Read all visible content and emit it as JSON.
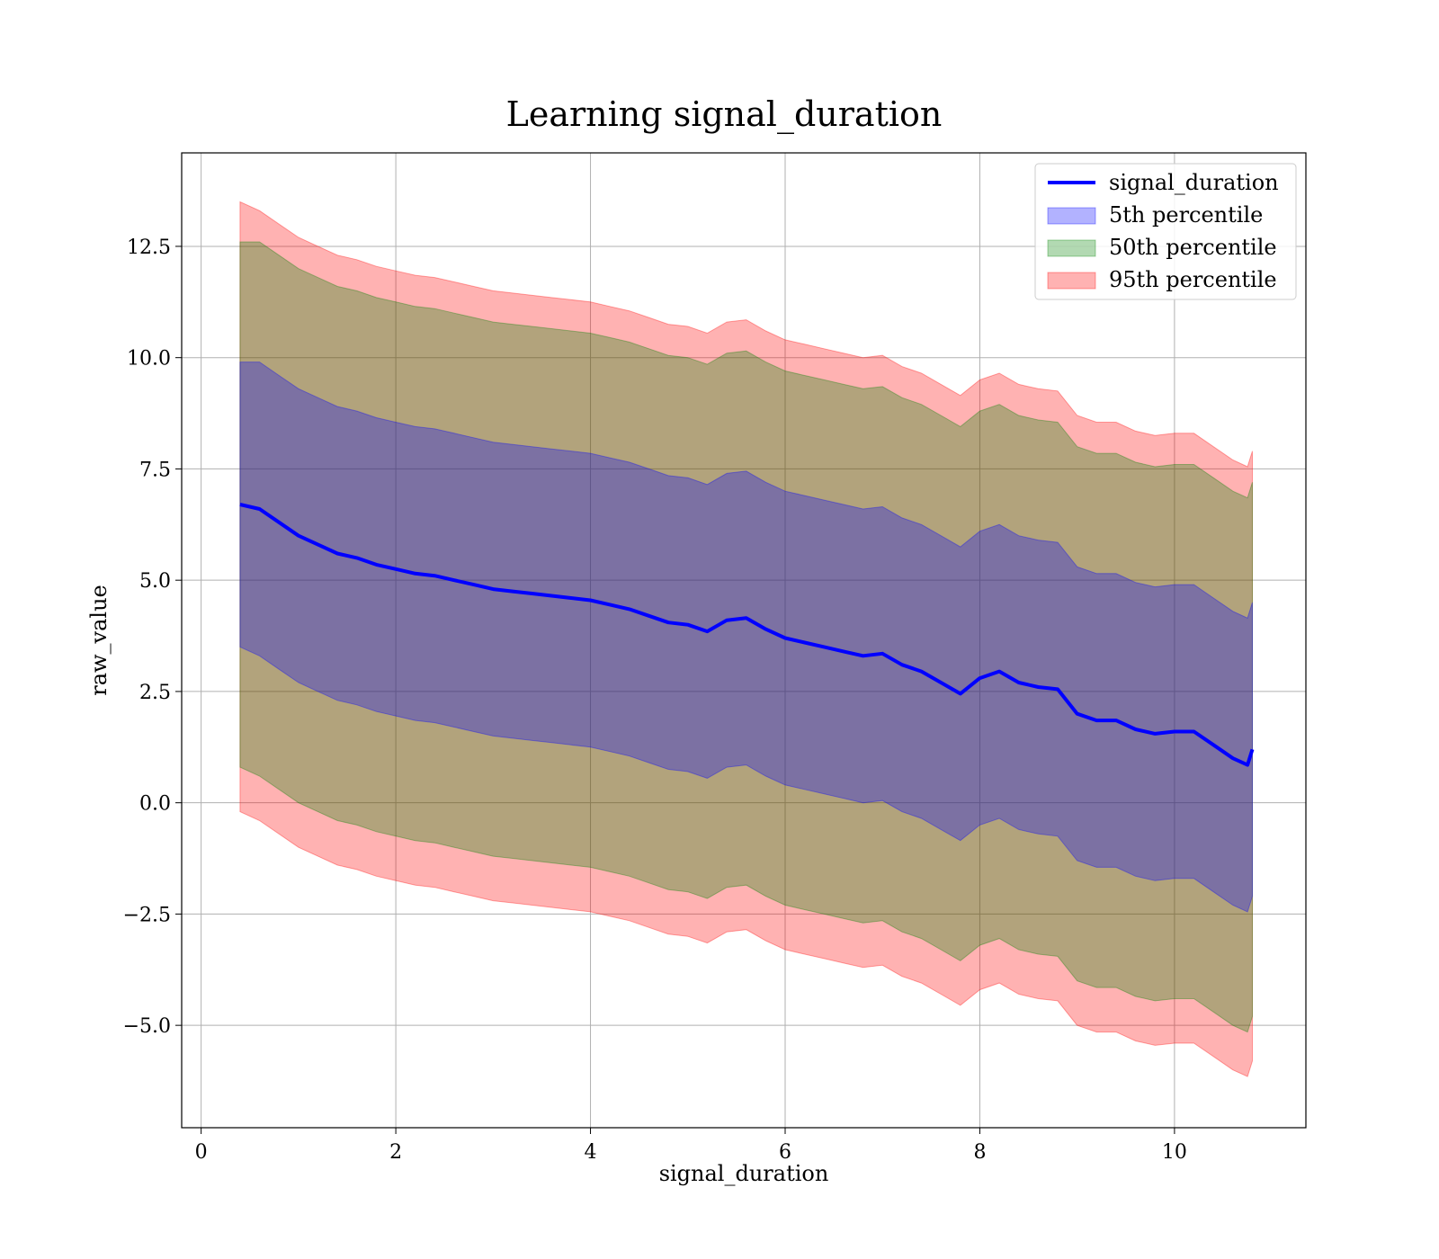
{
  "chart_data": {
    "type": "area",
    "title": "Learning signal_duration",
    "xlabel": "signal_duration",
    "ylabel": "raw_value",
    "xlim": [
      -0.2,
      11.35
    ],
    "ylim": [
      -7.3,
      14.6
    ],
    "xticks": [
      0,
      2,
      4,
      6,
      8,
      10
    ],
    "xtick_labels": [
      "0",
      "2",
      "4",
      "6",
      "8",
      "10"
    ],
    "yticks": [
      -5.0,
      -2.5,
      0.0,
      2.5,
      5.0,
      7.5,
      10.0,
      12.5
    ],
    "ytick_labels": [
      "−5.0",
      "−2.5",
      "0.0",
      "2.5",
      "5.0",
      "7.5",
      "10.0",
      "12.5"
    ],
    "grid": true,
    "legend_position": "top-right",
    "x": [
      0.4,
      0.6,
      0.8,
      1.0,
      1.2,
      1.4,
      1.6,
      1.8,
      2.0,
      2.2,
      2.4,
      2.6,
      2.8,
      3.0,
      3.2,
      3.4,
      3.6,
      3.8,
      4.0,
      4.2,
      4.4,
      4.6,
      4.8,
      5.0,
      5.2,
      5.4,
      5.6,
      5.8,
      6.0,
      6.2,
      6.4,
      6.6,
      6.8,
      7.0,
      7.2,
      7.4,
      7.6,
      7.8,
      8.0,
      8.2,
      8.4,
      8.6,
      8.8,
      9.0,
      9.2,
      9.4,
      9.6,
      9.8,
      10.0,
      10.2,
      10.4,
      10.6,
      10.75,
      10.8
    ],
    "series": [
      {
        "name": "signal_duration",
        "kind": "line",
        "color": "#0000ff",
        "values": [
          6.7,
          6.6,
          6.3,
          6.0,
          5.8,
          5.6,
          5.5,
          5.35,
          5.25,
          5.15,
          5.1,
          5.0,
          4.9,
          4.8,
          4.75,
          4.7,
          4.65,
          4.6,
          4.55,
          4.45,
          4.35,
          4.2,
          4.05,
          4.0,
          3.85,
          4.1,
          4.15,
          3.9,
          3.7,
          3.6,
          3.5,
          3.4,
          3.3,
          3.35,
          3.1,
          2.95,
          2.7,
          2.45,
          2.8,
          2.95,
          2.7,
          2.6,
          2.55,
          2.0,
          1.85,
          1.85,
          1.65,
          1.55,
          1.6,
          1.6,
          1.3,
          1.0,
          0.85,
          1.2
        ]
      },
      {
        "name": "5th percentile",
        "kind": "band",
        "color": "#0000ff",
        "lower": [
          3.5,
          3.3,
          3.0,
          2.7,
          2.5,
          2.3,
          2.2,
          2.05,
          1.95,
          1.85,
          1.8,
          1.7,
          1.6,
          1.5,
          1.45,
          1.4,
          1.35,
          1.3,
          1.25,
          1.15,
          1.05,
          0.9,
          0.75,
          0.7,
          0.55,
          0.8,
          0.85,
          0.6,
          0.4,
          0.3,
          0.2,
          0.1,
          0.0,
          0.05,
          -0.2,
          -0.35,
          -0.6,
          -0.85,
          -0.5,
          -0.35,
          -0.6,
          -0.7,
          -0.75,
          -1.3,
          -1.45,
          -1.45,
          -1.65,
          -1.75,
          -1.7,
          -1.7,
          -2.0,
          -2.3,
          -2.45,
          -2.1
        ],
        "upper": [
          9.9,
          9.9,
          9.6,
          9.3,
          9.1,
          8.9,
          8.8,
          8.65,
          8.55,
          8.45,
          8.4,
          8.3,
          8.2,
          8.1,
          8.05,
          8.0,
          7.95,
          7.9,
          7.85,
          7.75,
          7.65,
          7.5,
          7.35,
          7.3,
          7.15,
          7.4,
          7.45,
          7.2,
          7.0,
          6.9,
          6.8,
          6.7,
          6.6,
          6.65,
          6.4,
          6.25,
          6.0,
          5.75,
          6.1,
          6.25,
          6.0,
          5.9,
          5.85,
          5.3,
          5.15,
          5.15,
          4.95,
          4.85,
          4.9,
          4.9,
          4.6,
          4.3,
          4.15,
          4.5
        ]
      },
      {
        "name": "50th percentile",
        "kind": "band",
        "color": "#008000",
        "lower": [
          0.8,
          0.6,
          0.3,
          0.0,
          -0.2,
          -0.4,
          -0.5,
          -0.65,
          -0.75,
          -0.85,
          -0.9,
          -1.0,
          -1.1,
          -1.2,
          -1.25,
          -1.3,
          -1.35,
          -1.4,
          -1.45,
          -1.55,
          -1.65,
          -1.8,
          -1.95,
          -2.0,
          -2.15,
          -1.9,
          -1.85,
          -2.1,
          -2.3,
          -2.4,
          -2.5,
          -2.6,
          -2.7,
          -2.65,
          -2.9,
          -3.05,
          -3.3,
          -3.55,
          -3.2,
          -3.05,
          -3.3,
          -3.4,
          -3.45,
          -4.0,
          -4.15,
          -4.15,
          -4.35,
          -4.45,
          -4.4,
          -4.4,
          -4.7,
          -5.0,
          -5.15,
          -4.8
        ],
        "upper": [
          12.6,
          12.6,
          12.3,
          12.0,
          11.8,
          11.6,
          11.5,
          11.35,
          11.25,
          11.15,
          11.1,
          11.0,
          10.9,
          10.8,
          10.75,
          10.7,
          10.65,
          10.6,
          10.55,
          10.45,
          10.35,
          10.2,
          10.05,
          10.0,
          9.85,
          10.1,
          10.15,
          9.9,
          9.7,
          9.6,
          9.5,
          9.4,
          9.3,
          9.35,
          9.1,
          8.95,
          8.7,
          8.45,
          8.8,
          8.95,
          8.7,
          8.6,
          8.55,
          8.0,
          7.85,
          7.85,
          7.65,
          7.55,
          7.6,
          7.6,
          7.3,
          7.0,
          6.85,
          7.2
        ]
      },
      {
        "name": "95th percentile",
        "kind": "band",
        "color": "#ff0000",
        "lower": [
          -0.2,
          -0.4,
          -0.7,
          -1.0,
          -1.2,
          -1.4,
          -1.5,
          -1.65,
          -1.75,
          -1.85,
          -1.9,
          -2.0,
          -2.1,
          -2.2,
          -2.25,
          -2.3,
          -2.35,
          -2.4,
          -2.45,
          -2.55,
          -2.65,
          -2.8,
          -2.95,
          -3.0,
          -3.15,
          -2.9,
          -2.85,
          -3.1,
          -3.3,
          -3.4,
          -3.5,
          -3.6,
          -3.7,
          -3.65,
          -3.9,
          -4.05,
          -4.3,
          -4.55,
          -4.2,
          -4.05,
          -4.3,
          -4.4,
          -4.45,
          -5.0,
          -5.15,
          -5.15,
          -5.35,
          -5.45,
          -5.4,
          -5.4,
          -5.7,
          -6.0,
          -6.15,
          -5.8
        ],
        "upper": [
          13.5,
          13.3,
          13.0,
          12.7,
          12.5,
          12.3,
          12.2,
          12.05,
          11.95,
          11.85,
          11.8,
          11.7,
          11.6,
          11.5,
          11.45,
          11.4,
          11.35,
          11.3,
          11.25,
          11.15,
          11.05,
          10.9,
          10.75,
          10.7,
          10.55,
          10.8,
          10.85,
          10.6,
          10.4,
          10.3,
          10.2,
          10.1,
          10.0,
          10.05,
          9.8,
          9.65,
          9.4,
          9.15,
          9.5,
          9.65,
          9.4,
          9.3,
          9.25,
          8.7,
          8.55,
          8.55,
          8.35,
          8.25,
          8.3,
          8.3,
          8.0,
          7.7,
          7.55,
          7.9
        ]
      }
    ]
  }
}
